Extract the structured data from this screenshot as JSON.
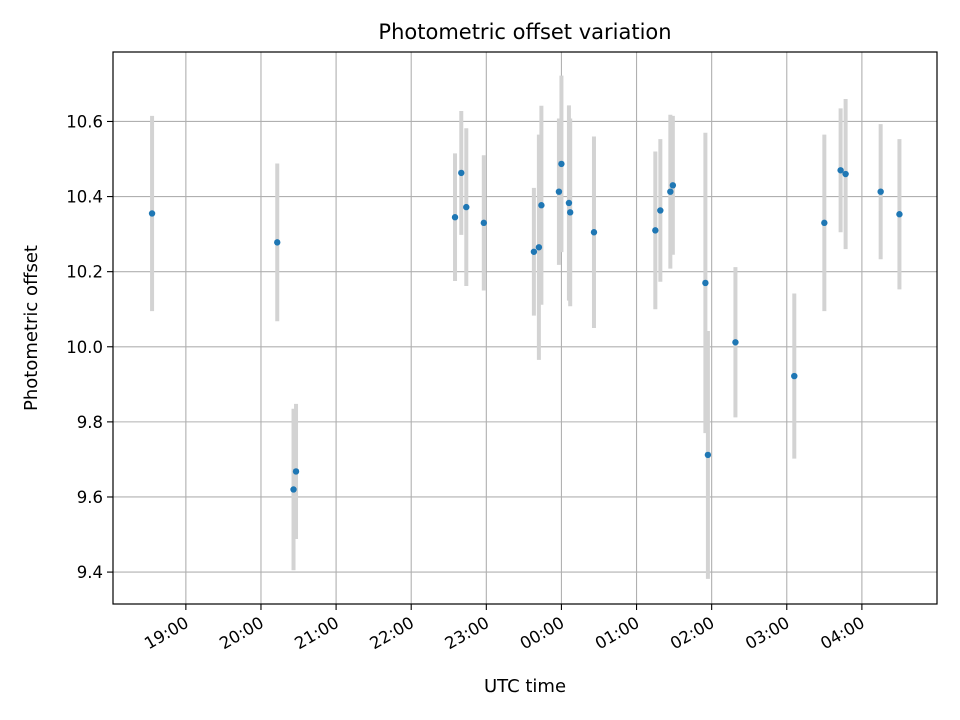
{
  "chart_data": {
    "type": "scatter",
    "title": "Photometric offset variation",
    "xlabel": "UTC time",
    "ylabel": "Photometric offset",
    "xlim": [
      -0.97,
      10.0
    ],
    "ylim": [
      9.315,
      10.785
    ],
    "grid": true,
    "x_ticks": [
      {
        "value": 0,
        "label": "19:00"
      },
      {
        "value": 1,
        "label": "20:00"
      },
      {
        "value": 2,
        "label": "21:00"
      },
      {
        "value": 3,
        "label": "22:00"
      },
      {
        "value": 4,
        "label": "23:00"
      },
      {
        "value": 5,
        "label": "00:00"
      },
      {
        "value": 6,
        "label": "01:00"
      },
      {
        "value": 7,
        "label": "02:00"
      },
      {
        "value": 8,
        "label": "03:00"
      },
      {
        "value": 9,
        "label": "04:00"
      }
    ],
    "y_ticks": [
      {
        "value": 9.4,
        "label": "9.4"
      },
      {
        "value": 9.6,
        "label": "9.6"
      },
      {
        "value": 9.8,
        "label": "9.8"
      },
      {
        "value": 10.0,
        "label": "10.0"
      },
      {
        "value": 10.2,
        "label": "10.2"
      },
      {
        "value": 10.4,
        "label": "10.4"
      },
      {
        "value": 10.6,
        "label": "10.6"
      }
    ],
    "series": [
      {
        "marker_color": "#1f77b4",
        "errorbar_color": "#d3d3d3",
        "points": [
          {
            "x": "18:33",
            "y": 10.355,
            "err": 0.26
          },
          {
            "x": "20:13",
            "y": 10.278,
            "err": 0.21
          },
          {
            "x": "20:26",
            "y": 9.62,
            "err": 0.215
          },
          {
            "x": "20:28",
            "y": 9.668,
            "err": 0.18
          },
          {
            "x": "22:35",
            "y": 10.345,
            "err": 0.17
          },
          {
            "x": "22:40",
            "y": 10.463,
            "err": 0.165
          },
          {
            "x": "22:44",
            "y": 10.372,
            "err": 0.21
          },
          {
            "x": "22:58",
            "y": 10.33,
            "err": 0.18
          },
          {
            "x": "23:38",
            "y": 10.253,
            "err": 0.17
          },
          {
            "x": "23:42",
            "y": 10.265,
            "err": 0.3
          },
          {
            "x": "23:44",
            "y": 10.377,
            "err": 0.265
          },
          {
            "x": "23:58",
            "y": 10.413,
            "err": 0.195
          },
          {
            "x": "24:00",
            "y": 10.487,
            "err": 0.235
          },
          {
            "x": "24:06",
            "y": 10.383,
            "err": 0.26
          },
          {
            "x": "24:07",
            "y": 10.358,
            "err": 0.25
          },
          {
            "x": "24:26",
            "y": 10.305,
            "err": 0.255
          },
          {
            "x": "25:15",
            "y": 10.31,
            "err": 0.21
          },
          {
            "x": "25:19",
            "y": 10.363,
            "err": 0.19
          },
          {
            "x": "25:27",
            "y": 10.413,
            "err": 0.205
          },
          {
            "x": "25:29",
            "y": 10.43,
            "err": 0.185
          },
          {
            "x": "25:55",
            "y": 10.17,
            "err": 0.4
          },
          {
            "x": "25:57",
            "y": 9.712,
            "err": 0.33
          },
          {
            "x": "26:19",
            "y": 10.012,
            "err": 0.2
          },
          {
            "x": "27:06",
            "y": 9.922,
            "err": 0.22
          },
          {
            "x": "27:30",
            "y": 10.33,
            "err": 0.235
          },
          {
            "x": "27:43",
            "y": 10.47,
            "err": 0.165
          },
          {
            "x": "27:47",
            "y": 10.46,
            "err": 0.2
          },
          {
            "x": "28:15",
            "y": 10.413,
            "err": 0.18
          },
          {
            "x": "28:30",
            "y": 10.353,
            "err": 0.2
          }
        ]
      }
    ]
  }
}
